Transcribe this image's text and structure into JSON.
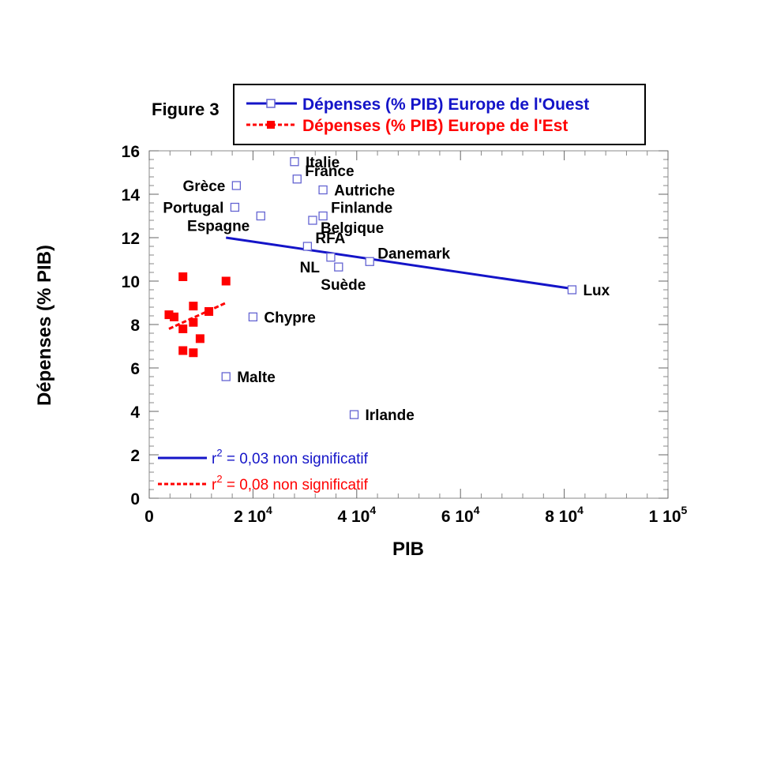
{
  "figure_label": "Figure 3",
  "legend": {
    "west": "Dépenses (% PIB) Europe de l'Ouest",
    "east": "Dépenses (% PIB) Europe de l'Est"
  },
  "colors": {
    "west": "#1414c8",
    "west_marker": "#6464d2",
    "east": "#ff0000",
    "axis": "#000000"
  },
  "r2": {
    "west": {
      "prefix": "r",
      "sup": "2",
      "text": " = 0,03 non significatif"
    },
    "east": {
      "prefix": "r",
      "sup": "2",
      "text": " = 0,08 non significatif"
    }
  },
  "chart_data": {
    "type": "scatter",
    "xlabel": "PIB",
    "ylabel": "Dépenses (% PIB)",
    "xlim": [
      0,
      100000
    ],
    "ylim": [
      0,
      16
    ],
    "x_ticks": [
      {
        "value": 0,
        "mant": "0",
        "exp": ""
      },
      {
        "value": 20000,
        "mant": "2 10",
        "exp": "4"
      },
      {
        "value": 40000,
        "mant": "4 10",
        "exp": "4"
      },
      {
        "value": 60000,
        "mant": "6 10",
        "exp": "4"
      },
      {
        "value": 80000,
        "mant": "8 10",
        "exp": "4"
      },
      {
        "value": 100000,
        "mant": "1 10",
        "exp": "5"
      }
    ],
    "y_ticks": [
      0,
      2,
      4,
      6,
      8,
      10,
      12,
      14,
      16
    ],
    "series": [
      {
        "name": "Dépenses (% PIB) Europe de l'Ouest",
        "marker": "open-square",
        "points": [
          {
            "label": "Italie",
            "x": 28000,
            "y": 15.5,
            "label_side": "right"
          },
          {
            "label": "France",
            "x": 28500,
            "y": 14.7,
            "label_side": "upper-right"
          },
          {
            "label": "Grèce",
            "x": 16800,
            "y": 14.4,
            "label_side": "left"
          },
          {
            "label": "Autriche",
            "x": 33500,
            "y": 14.2,
            "label_side": "right"
          },
          {
            "label": "Portugal",
            "x": 16500,
            "y": 13.4,
            "label_side": "left"
          },
          {
            "label": "Espagne",
            "x": 21500,
            "y": 13.0,
            "label_side": "lower-left"
          },
          {
            "label": "Finlande",
            "x": 33500,
            "y": 13.0,
            "label_side": "upper-right"
          },
          {
            "label": "Belgique",
            "x": 31500,
            "y": 12.8,
            "label_side": "lower-right"
          },
          {
            "label": "RFA",
            "x": 30500,
            "y": 11.6,
            "label_side": "upper-right"
          },
          {
            "label": "NL",
            "x": 35000,
            "y": 11.1,
            "label_side": "lower-left"
          },
          {
            "label": "Danemark",
            "x": 42500,
            "y": 10.9,
            "label_side": "upper-right"
          },
          {
            "label": "Suède",
            "x": 36500,
            "y": 10.65,
            "label_side": "below"
          },
          {
            "label": "Lux",
            "x": 81500,
            "y": 9.6,
            "label_side": "right"
          },
          {
            "label": "Chypre",
            "x": 20000,
            "y": 8.35,
            "label_side": "right"
          },
          {
            "label": "Malte",
            "x": 14800,
            "y": 5.6,
            "label_side": "right"
          },
          {
            "label": "Irlande",
            "x": 39500,
            "y": 3.85,
            "label_side": "right"
          }
        ],
        "fit": {
          "x": [
            14800,
            81500
          ],
          "y": [
            12.0,
            9.65
          ],
          "style": "solid"
        }
      },
      {
        "name": "Dépenses (% PIB) Europe de l'Est",
        "marker": "filled-square",
        "points": [
          {
            "x": 3800,
            "y": 8.45
          },
          {
            "x": 4800,
            "y": 8.35
          },
          {
            "x": 6500,
            "y": 10.2
          },
          {
            "x": 6500,
            "y": 7.8
          },
          {
            "x": 6500,
            "y": 6.8
          },
          {
            "x": 8500,
            "y": 8.85
          },
          {
            "x": 8500,
            "y": 8.1
          },
          {
            "x": 8500,
            "y": 6.7
          },
          {
            "x": 9800,
            "y": 7.35
          },
          {
            "x": 11500,
            "y": 8.6
          },
          {
            "x": 14800,
            "y": 10.0
          }
        ],
        "fit": {
          "x": [
            3800,
            14800
          ],
          "y": [
            7.8,
            9.0
          ],
          "style": "dashed"
        }
      }
    ]
  }
}
